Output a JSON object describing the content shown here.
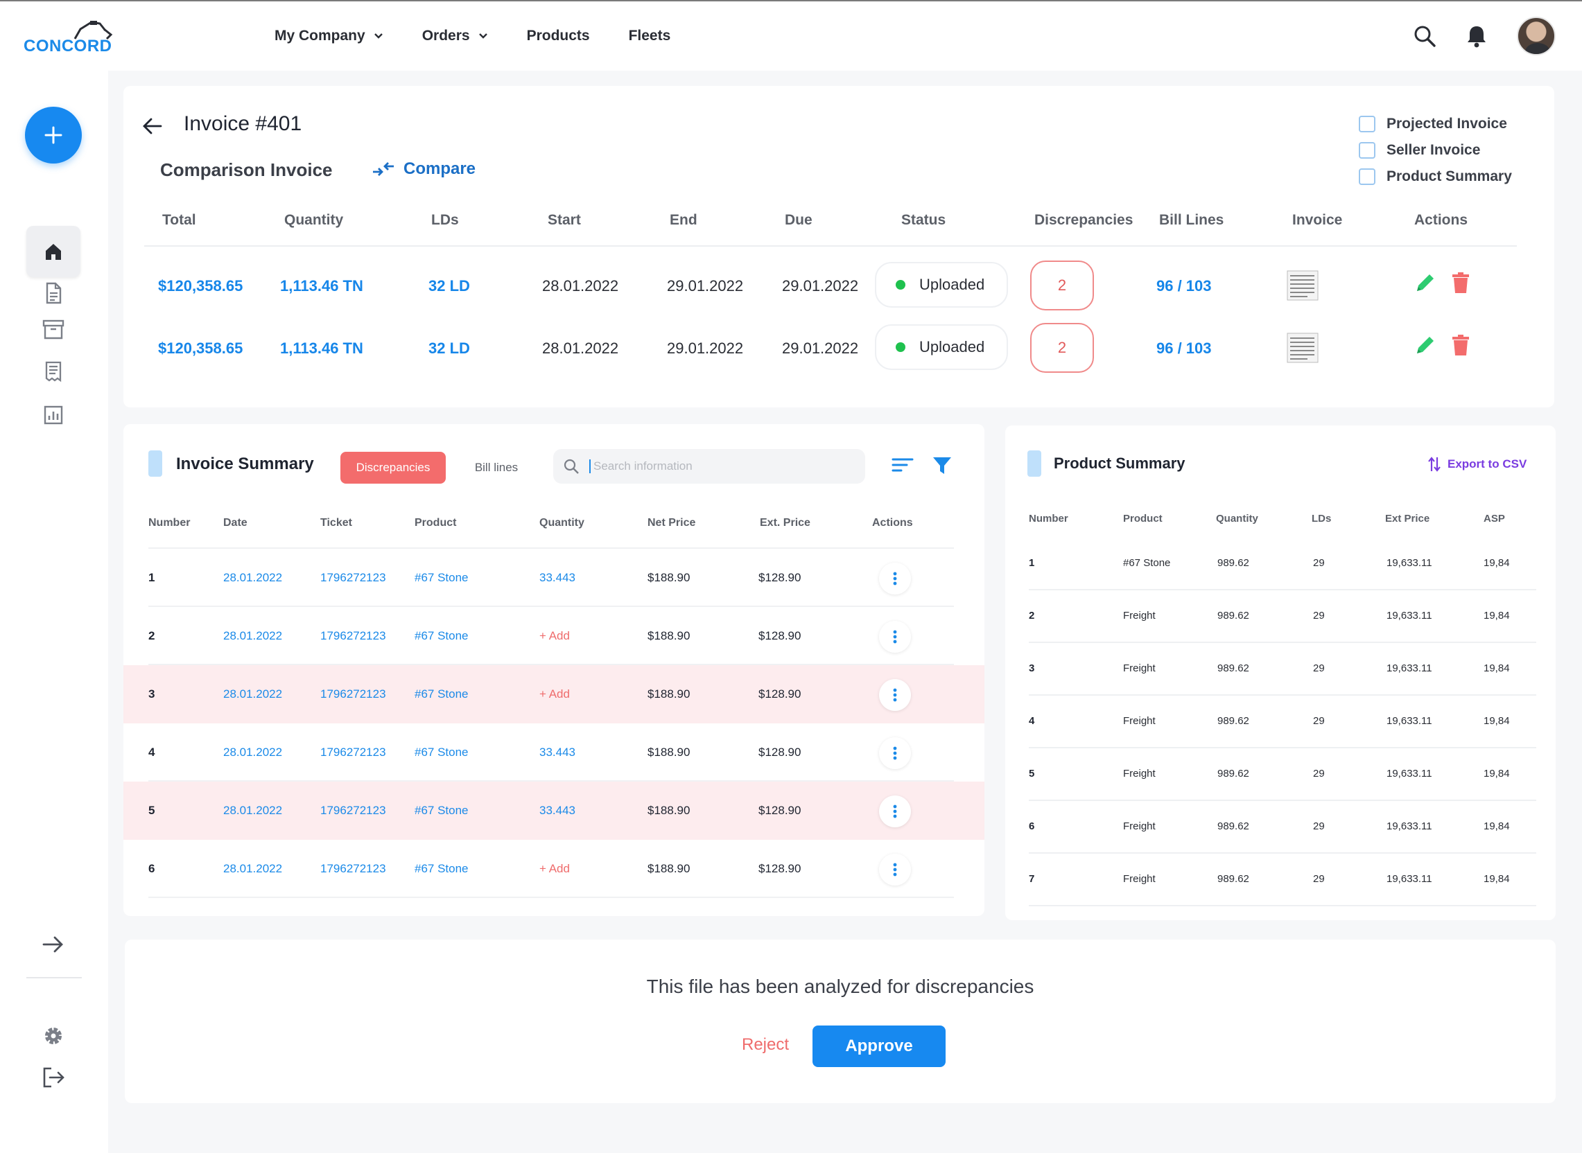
{
  "brand": {
    "name": "CONCORD"
  },
  "nav": {
    "items": [
      {
        "label": "My Company",
        "has_dropdown": true
      },
      {
        "label": "Orders",
        "has_dropdown": true
      },
      {
        "label": "Products",
        "has_dropdown": false
      },
      {
        "label": "Fleets",
        "has_dropdown": false
      }
    ],
    "icons": [
      "search-icon",
      "bell-icon",
      "user-avatar"
    ]
  },
  "sidebar": {
    "add_icon": "plus-icon",
    "items": [
      "home-icon",
      "document-icon",
      "archive-icon",
      "receipt-icon",
      "chart-icon"
    ],
    "bottom": [
      "expand-arrow-icon",
      "gear-icon",
      "logout-icon"
    ]
  },
  "invoice": {
    "title": "Invoice #401",
    "comparison_label": "Comparison Invoice",
    "compare_label": "Compare",
    "checkboxes": [
      {
        "label": "Projected Invoice",
        "checked": false
      },
      {
        "label": "Seller Invoice",
        "checked": false
      },
      {
        "label": "Product Summary",
        "checked": false
      }
    ],
    "columns": [
      "Total",
      "Quantity",
      "LDs",
      "Start",
      "End",
      "Due",
      "Status",
      "Discrepancies",
      "Bill Lines",
      "Invoice",
      "Actions"
    ],
    "rows": [
      {
        "total": "$120,358.65",
        "quantity": "1,113.46 TN",
        "lds": "32 LD",
        "start": "28.01.2022",
        "end": "29.01.2022",
        "due": "29.01.2022",
        "status": "Uploaded",
        "discrepancies": "2",
        "bill_lines": "96 / 103"
      },
      {
        "total": "$120,358.65",
        "quantity": "1,113.46 TN",
        "lds": "32 LD",
        "start": "28.01.2022",
        "end": "29.01.2022",
        "due": "29.01.2022",
        "status": "Uploaded",
        "discrepancies": "2",
        "bill_lines": "96 / 103"
      }
    ],
    "colors": {
      "accent": "#1686e9",
      "status_ok": "#1fc14e",
      "danger": "#f36c6c",
      "edit": "#2ecc71"
    }
  },
  "invoice_summary": {
    "title": "Invoice Summary",
    "tabs": [
      {
        "label": "Discrepancies",
        "active": true
      },
      {
        "label": "Bill lines",
        "active": false
      }
    ],
    "search_placeholder": "Search information",
    "columns": [
      "Number",
      "Date",
      "Ticket",
      "Product",
      "Quantity",
      "Net Price",
      "Ext. Price",
      "Actions"
    ],
    "rows": [
      {
        "number": "1",
        "date": "28.01.2022",
        "ticket": "1796272123",
        "product": "#67 Stone",
        "quantity": "33.443",
        "net_price": "$188.90",
        "ext_price": "$128.90",
        "highlight": false,
        "is_add": false
      },
      {
        "number": "2",
        "date": "28.01.2022",
        "ticket": "1796272123",
        "product": "#67 Stone",
        "quantity": "+ Add",
        "net_price": "$188.90",
        "ext_price": "$128.90",
        "highlight": false,
        "is_add": true
      },
      {
        "number": "3",
        "date": "28.01.2022",
        "ticket": "1796272123",
        "product": "#67 Stone",
        "quantity": "+ Add",
        "net_price": "$188.90",
        "ext_price": "$128.90",
        "highlight": true,
        "is_add": true
      },
      {
        "number": "4",
        "date": "28.01.2022",
        "ticket": "1796272123",
        "product": "#67 Stone",
        "quantity": "33.443",
        "net_price": "$188.90",
        "ext_price": "$128.90",
        "highlight": false,
        "is_add": false
      },
      {
        "number": "5",
        "date": "28.01.2022",
        "ticket": "1796272123",
        "product": "#67 Stone",
        "quantity": "33.443",
        "net_price": "$188.90",
        "ext_price": "$128.90",
        "highlight": true,
        "is_add": false
      },
      {
        "number": "6",
        "date": "28.01.2022",
        "ticket": "1796272123",
        "product": "#67 Stone",
        "quantity": "+ Add",
        "net_price": "$188.90",
        "ext_price": "$128.90",
        "highlight": false,
        "is_add": true
      }
    ]
  },
  "product_summary": {
    "title": "Product Summary",
    "export_label": "Export to CSV",
    "columns": [
      "Number",
      "Product",
      "Quantity",
      "LDs",
      "Ext Price",
      "ASP"
    ],
    "rows": [
      {
        "number": "1",
        "product": "#67 Stone",
        "quantity": "989.62",
        "lds": "29",
        "ext_price": "19,633.11",
        "asp": "19,84"
      },
      {
        "number": "2",
        "product": "Freight",
        "quantity": "989.62",
        "lds": "29",
        "ext_price": "19,633.11",
        "asp": "19,84"
      },
      {
        "number": "3",
        "product": "Freight",
        "quantity": "989.62",
        "lds": "29",
        "ext_price": "19,633.11",
        "asp": "19,84"
      },
      {
        "number": "4",
        "product": "Freight",
        "quantity": "989.62",
        "lds": "29",
        "ext_price": "19,633.11",
        "asp": "19,84"
      },
      {
        "number": "5",
        "product": "Freight",
        "quantity": "989.62",
        "lds": "29",
        "ext_price": "19,633.11",
        "asp": "19,84"
      },
      {
        "number": "6",
        "product": "Freight",
        "quantity": "989.62",
        "lds": "29",
        "ext_price": "19,633.11",
        "asp": "19,84"
      },
      {
        "number": "7",
        "product": "Freight",
        "quantity": "989.62",
        "lds": "29",
        "ext_price": "19,633.11",
        "asp": "19,84"
      }
    ]
  },
  "analysis": {
    "message": "This file has been analyzed for discrepancies",
    "reject_label": "Reject",
    "approve_label": "Approve"
  }
}
